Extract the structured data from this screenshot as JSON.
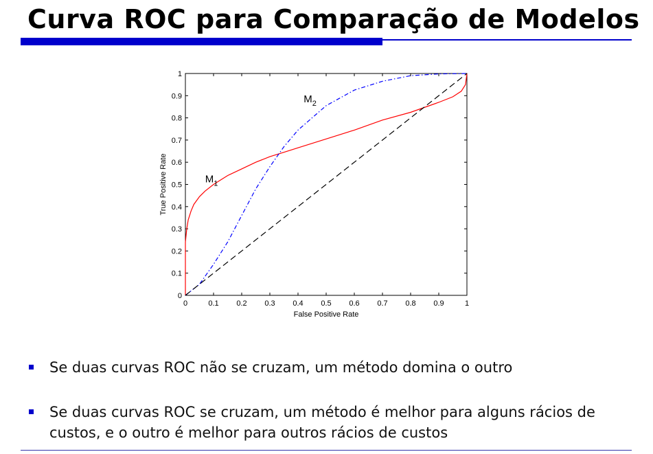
{
  "slide": {
    "title": "Curva ROC para Comparação de Modelos",
    "accent_color": "#0000cc"
  },
  "chart_data": {
    "type": "line",
    "xlabel": "False Positive Rate",
    "ylabel": "True Positive Rate",
    "xlim": [
      0,
      1
    ],
    "ylim": [
      0,
      1
    ],
    "xticks": [
      "0",
      "0.1",
      "0.2",
      "0.3",
      "0.4",
      "0.5",
      "0.6",
      "0.7",
      "0.8",
      "0.9",
      "1"
    ],
    "yticks": [
      "0",
      "0.1",
      "0.2",
      "0.3",
      "0.4",
      "0.5",
      "0.6",
      "0.7",
      "0.8",
      "0.9",
      "1"
    ],
    "grid": false,
    "series": [
      {
        "label_main": "M",
        "label_sub": "1",
        "color": "#ff0000",
        "style": "solid",
        "x": [
          0,
          0,
          0.005,
          0.01,
          0.02,
          0.03,
          0.05,
          0.07,
          0.1,
          0.15,
          0.2,
          0.25,
          0.3,
          0.35,
          0.4,
          0.5,
          0.6,
          0.7,
          0.8,
          0.9,
          0.95,
          0.98,
          0.995,
          1.0
        ],
        "y": [
          0,
          0.24,
          0.3,
          0.34,
          0.38,
          0.41,
          0.445,
          0.47,
          0.5,
          0.54,
          0.57,
          0.6,
          0.625,
          0.645,
          0.665,
          0.705,
          0.745,
          0.79,
          0.825,
          0.87,
          0.895,
          0.92,
          0.95,
          1.0
        ],
        "label_at": [
          0.07,
          0.51
        ]
      },
      {
        "label_main": "M",
        "label_sub": "2",
        "color": "#0000ff",
        "style": "dashdot",
        "x": [
          0,
          0.05,
          0.1,
          0.15,
          0.2,
          0.25,
          0.3,
          0.35,
          0.4,
          0.45,
          0.5,
          0.6,
          0.7,
          0.8,
          0.9,
          1.0
        ],
        "y": [
          0,
          0.05,
          0.14,
          0.24,
          0.36,
          0.48,
          0.58,
          0.67,
          0.745,
          0.8,
          0.855,
          0.925,
          0.965,
          0.99,
          0.998,
          1.0
        ],
        "label_at": [
          0.42,
          0.87
        ]
      },
      {
        "color": "#000000",
        "style": "dashed",
        "x": [
          0,
          1
        ],
        "y": [
          0,
          1
        ]
      }
    ]
  },
  "bullets": [
    {
      "text": "Se duas curvas ROC não se cruzam, um método domina o outro"
    },
    {
      "text": "Se duas curvas ROC se cruzam, um método é melhor para alguns rácios de custos, e o outro é melhor para outros rácios de custos"
    }
  ]
}
